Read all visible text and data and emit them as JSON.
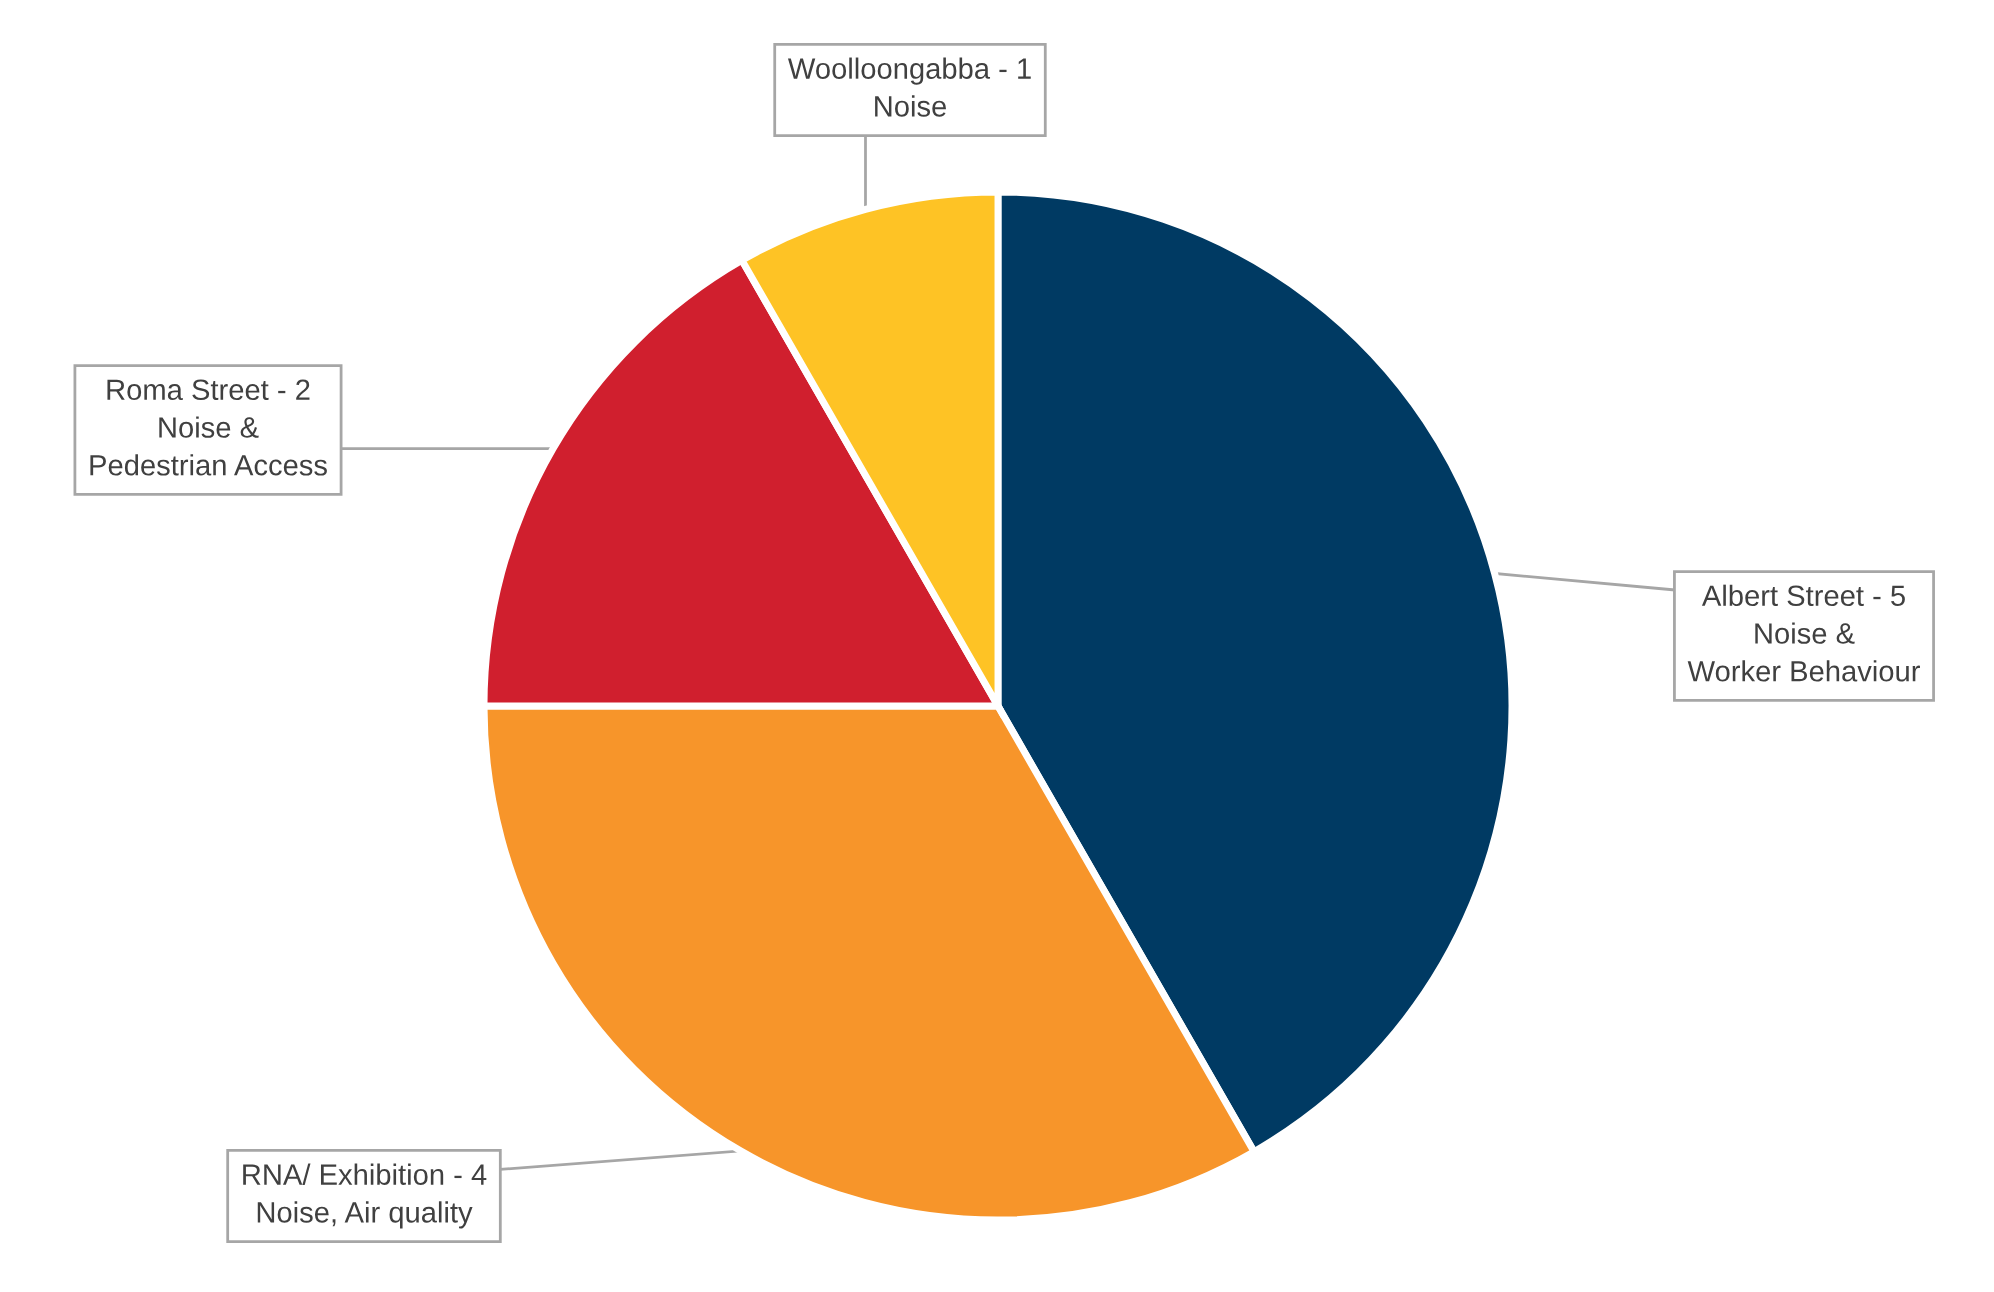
{
  "chart_data": {
    "type": "pie",
    "categories": [
      "Albert Street - 5\nNoise &\nWorker Behaviour",
      "RNA/ Exhibition - 4\nNoise, Air quality",
      "Roma Street - 2\nNoise &\nPedestrian Access",
      "Woolloongabba - 1\nNoise"
    ],
    "values": [
      41.7,
      33.3,
      16.7,
      8.3
    ],
    "colors": [
      "#003a63",
      "#f7952a",
      "#d01f2e",
      "#fec325"
    ]
  }
}
